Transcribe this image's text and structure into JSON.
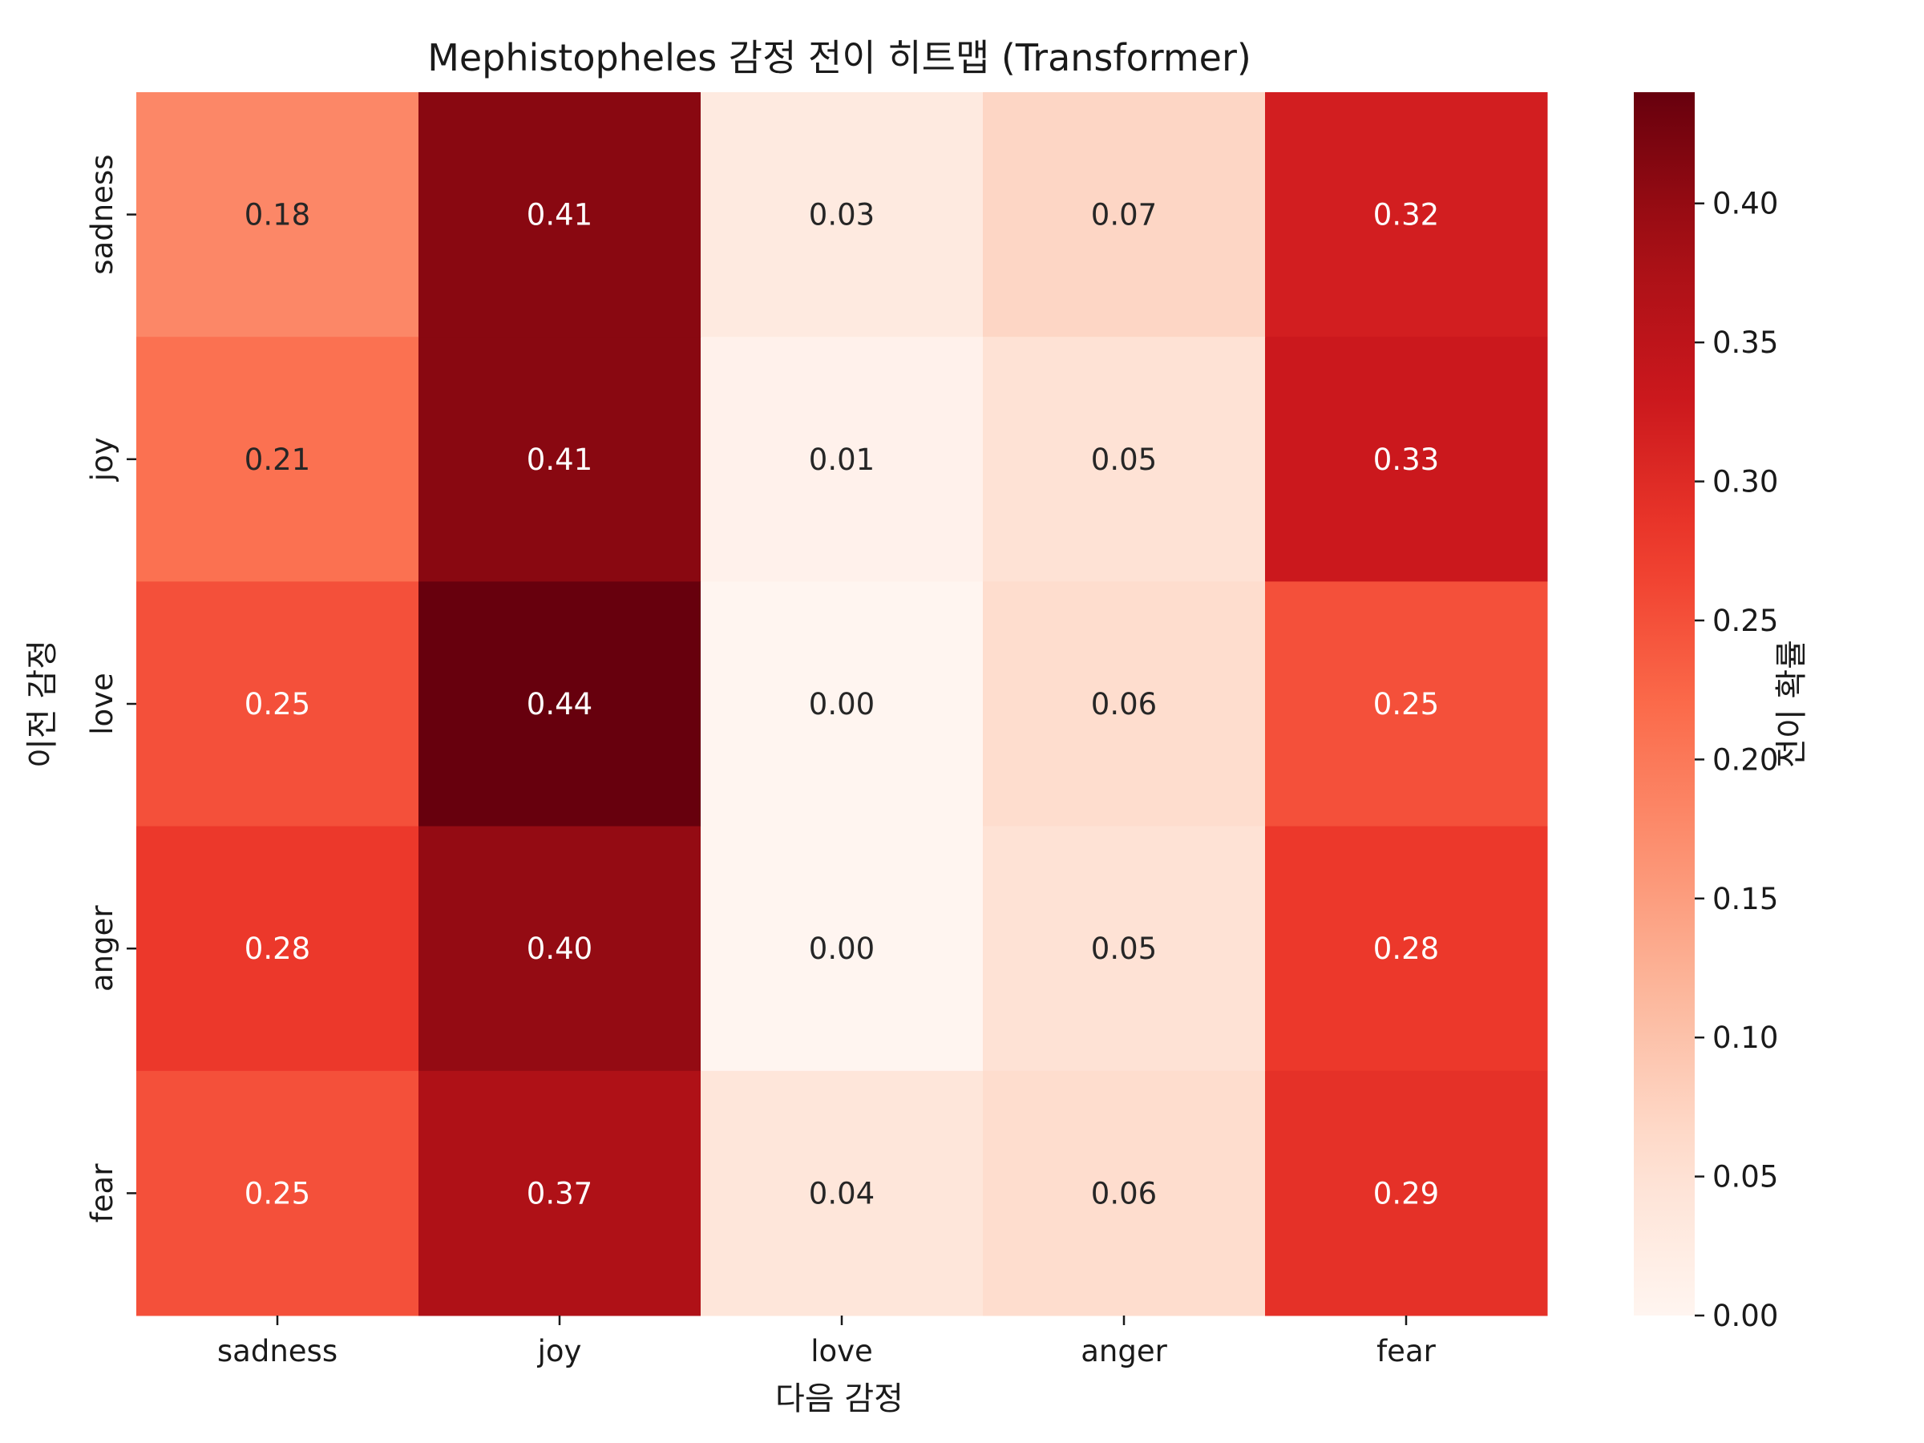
{
  "chart_data": {
    "type": "heatmap",
    "title": "Mephistopheles 감정 전이 히트맵 (Transformer)",
    "xlabel": "다음 감정",
    "ylabel": "이전 감정",
    "x_categories": [
      "sadness",
      "joy",
      "love",
      "anger",
      "fear"
    ],
    "y_categories": [
      "sadness",
      "joy",
      "love",
      "anger",
      "fear"
    ],
    "values": [
      [
        0.18,
        0.41,
        0.03,
        0.07,
        0.32
      ],
      [
        0.21,
        0.41,
        0.01,
        0.05,
        0.33
      ],
      [
        0.25,
        0.44,
        0.0,
        0.06,
        0.25
      ],
      [
        0.28,
        0.4,
        0.0,
        0.05,
        0.28
      ],
      [
        0.25,
        0.37,
        0.04,
        0.06,
        0.29
      ]
    ],
    "value_labels": [
      [
        "0.18",
        "0.41",
        "0.03",
        "0.07",
        "0.32"
      ],
      [
        "0.21",
        "0.41",
        "0.01",
        "0.05",
        "0.33"
      ],
      [
        "0.25",
        "0.44",
        "0.00",
        "0.06",
        "0.25"
      ],
      [
        "0.28",
        "0.40",
        "0.00",
        "0.05",
        "0.28"
      ],
      [
        "0.25",
        "0.37",
        "0.04",
        "0.06",
        "0.29"
      ]
    ],
    "colormap": "Reds",
    "colorbar": {
      "label": "전이 확률",
      "range": [
        0.0,
        0.44
      ],
      "ticks": [
        0.0,
        0.05,
        0.1,
        0.15,
        0.2,
        0.25,
        0.3,
        0.35,
        0.4
      ],
      "tick_labels": [
        "0.00",
        "0.05",
        "0.10",
        "0.15",
        "0.20",
        "0.25",
        "0.30",
        "0.35",
        "0.40"
      ]
    }
  }
}
